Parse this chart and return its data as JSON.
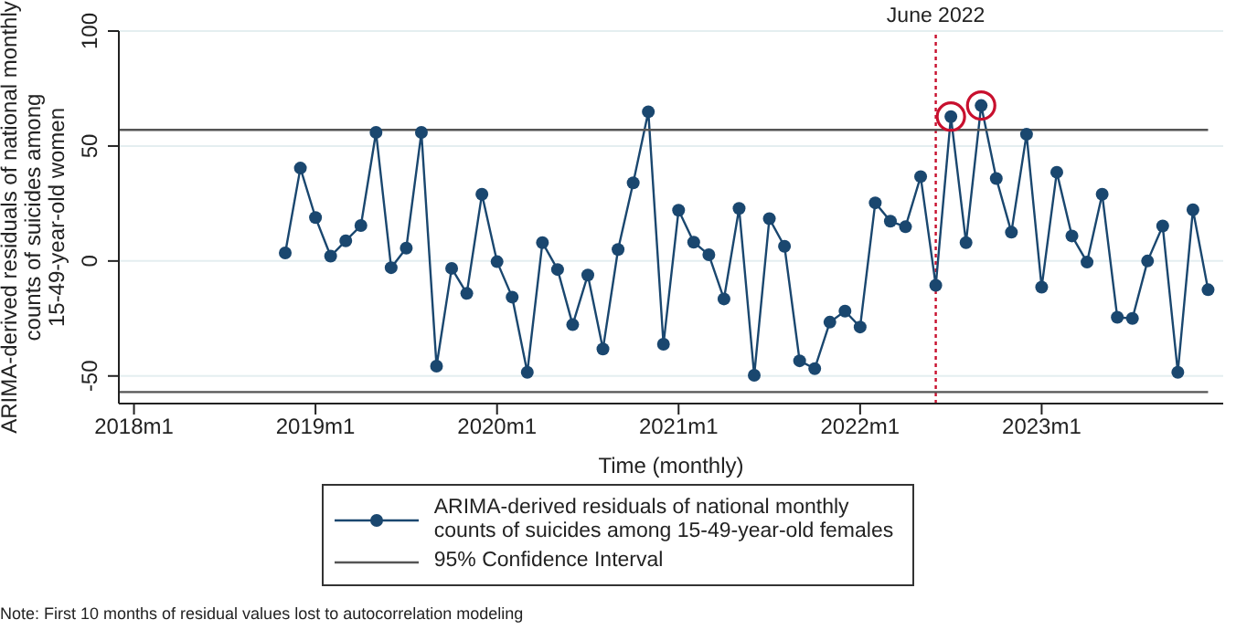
{
  "chart_data": {
    "type": "line",
    "xlabel": "Time (monthly)",
    "ylabel": "ARIMA-derived residuals of national monthly\ncounts of suicides among\n15-49-year-old women",
    "xlim": [
      "2017-12",
      "2024-01"
    ],
    "xticks": [
      {
        "value": "2018-01",
        "label": "2018m1"
      },
      {
        "value": "2019-01",
        "label": "2019m1"
      },
      {
        "value": "2020-01",
        "label": "2020m1"
      },
      {
        "value": "2021-01",
        "label": "2021m1"
      },
      {
        "value": "2022-01",
        "label": "2022m1"
      },
      {
        "value": "2023-01",
        "label": "2023m1"
      }
    ],
    "ylim": [
      -62,
      100
    ],
    "yticks": [
      -50,
      0,
      50,
      100
    ],
    "grid": "y",
    "legend": "bottom",
    "series": [
      {
        "name": "ARIMA-derived residuals of national monthly\ncounts of suicides among 15-49-year-old females",
        "color": "#1a476f",
        "marker": "circle",
        "x": [
          "2018-11",
          "2018-12",
          "2019-01",
          "2019-02",
          "2019-03",
          "2019-04",
          "2019-05",
          "2019-06",
          "2019-07",
          "2019-08",
          "2019-09",
          "2019-10",
          "2019-11",
          "2019-12",
          "2020-01",
          "2020-02",
          "2020-03",
          "2020-04",
          "2020-05",
          "2020-06",
          "2020-07",
          "2020-08",
          "2020-09",
          "2020-10",
          "2020-11",
          "2020-12",
          "2021-01",
          "2021-02",
          "2021-03",
          "2021-04",
          "2021-05",
          "2021-06",
          "2021-07",
          "2021-08",
          "2021-09",
          "2021-10",
          "2021-11",
          "2021-12",
          "2022-01",
          "2022-02",
          "2022-03",
          "2022-04",
          "2022-05",
          "2022-06",
          "2022-07",
          "2022-08",
          "2022-09",
          "2022-10",
          "2022-11",
          "2022-12",
          "2023-01",
          "2023-02",
          "2023-03",
          "2023-04",
          "2023-05",
          "2023-06",
          "2023-07",
          "2023-08",
          "2023-09",
          "2023-10",
          "2023-11",
          "2023-12"
        ],
        "values": [
          3.5,
          40.4,
          18.9,
          2.1,
          8.8,
          15.4,
          55.9,
          -2.9,
          5.6,
          55.9,
          -45.7,
          -3.2,
          -14.1,
          29,
          -0.3,
          -15.7,
          -48.4,
          8,
          -3.7,
          -27.7,
          -6.1,
          -38.3,
          5,
          34,
          64.9,
          -36.2,
          22.1,
          8.2,
          2.7,
          -16.5,
          22.9,
          -49.7,
          18.4,
          6.4,
          -43.4,
          -46.8,
          -26.6,
          -21.8,
          -28.7,
          25.3,
          17.3,
          14.9,
          36.7,
          -10.6,
          62.8,
          8,
          67.6,
          35.9,
          12.5,
          55.1,
          -11.4,
          38.6,
          10.9,
          -0.5,
          29,
          -24.5,
          -25,
          0,
          15.2,
          -48.4,
          22.3,
          -12.5
        ]
      },
      {
        "name": "95% Confidence Interval",
        "color": "#555555",
        "marker": "none",
        "x": [
          "2017-12",
          "2023-12"
        ],
        "values": [
          57,
          57
        ]
      },
      {
        "color": "#555555",
        "marker": "none",
        "x": [
          "2017-12",
          "2023-12"
        ],
        "values": [
          -57,
          -57
        ]
      },
      {
        "type": "scatter",
        "color": "#c8102e",
        "marker": "circle",
        "x": [
          "2022-07",
          "2022-09"
        ],
        "values": [
          62.8,
          67.6
        ]
      }
    ],
    "ref_lines": [
      {
        "axis": "x",
        "value": "2022-06",
        "label": "June 2022",
        "color": "#c8102e",
        "line_style": "dotted"
      }
    ],
    "annotations": [
      "Note: First 10 months of residual values lost to autocorrelation modeling"
    ]
  }
}
